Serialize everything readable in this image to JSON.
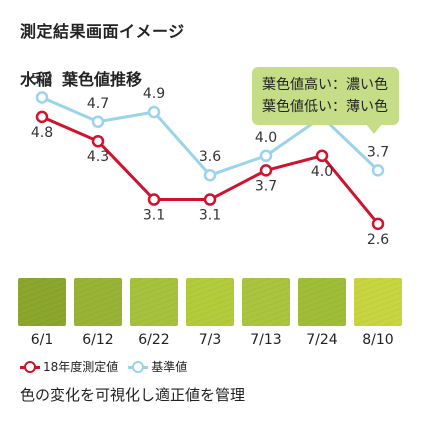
{
  "heading": "測定結果画面イメージ",
  "subheading": {
    "crop": "水稲",
    "metric": "葉色値推移"
  },
  "callout": {
    "line1": "葉色値高い：濃い色",
    "line2": "葉色値低い：薄い色"
  },
  "footer": "色の変化を可視化し適正値を管理",
  "colors": {
    "measured": "#d0122c",
    "standard": "#9bd3ea"
  },
  "chart_data": {
    "type": "line",
    "categories": [
      "6/1",
      "6/12",
      "6/22",
      "7/3",
      "7/13",
      "7/24",
      "8/10"
    ],
    "series": [
      {
        "name": "18年度測定値",
        "values": [
          4.8,
          4.3,
          3.1,
          3.1,
          3.7,
          4.0,
          2.6
        ]
      },
      {
        "name": "基準値",
        "values": [
          5.2,
          4.7,
          4.9,
          3.6,
          4.0,
          4.8,
          3.7
        ]
      }
    ],
    "ylim": [
      2.0,
      5.6
    ],
    "swatches": [
      "#8aa62a",
      "#98b334",
      "#a6c13a",
      "#b2cc38",
      "#aac43c",
      "#9fbd34",
      "#c8d53e"
    ]
  }
}
